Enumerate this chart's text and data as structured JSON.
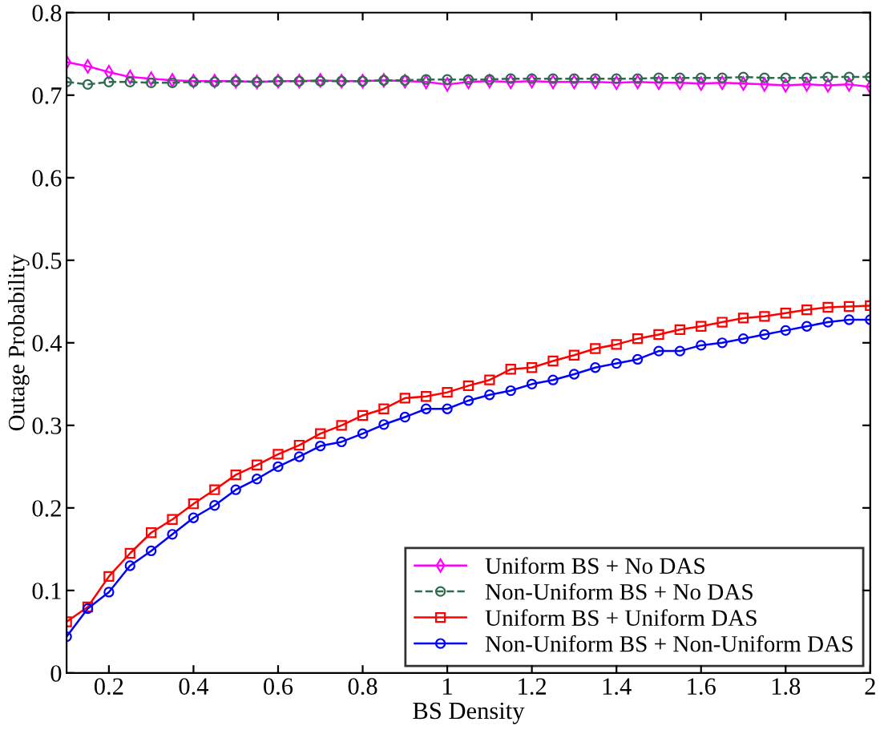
{
  "chart_data": {
    "type": "line",
    "xlabel": "BS Density",
    "ylabel": "Outage Probability",
    "xlim": [
      0.1,
      2
    ],
    "ylim": [
      0,
      0.8
    ],
    "xticks": [
      0.2,
      0.4,
      0.6,
      0.8,
      1,
      1.2,
      1.4,
      1.6,
      1.8,
      2
    ],
    "yticks": [
      0,
      0.1,
      0.2,
      0.3,
      0.4,
      0.5,
      0.6,
      0.7,
      0.8
    ],
    "grid": false,
    "legend": "bottom right",
    "x": [
      0.1,
      0.15,
      0.2,
      0.25,
      0.3,
      0.35,
      0.4,
      0.45,
      0.5,
      0.55,
      0.6,
      0.65,
      0.7,
      0.75,
      0.8,
      0.85,
      0.9,
      0.95,
      1.0,
      1.05,
      1.1,
      1.15,
      1.2,
      1.25,
      1.3,
      1.35,
      1.4,
      1.45,
      1.5,
      1.55,
      1.6,
      1.65,
      1.7,
      1.75,
      1.8,
      1.85,
      1.9,
      1.95,
      2.0
    ],
    "series": [
      {
        "name": "Uniform BS + No DAS",
        "color": "#ff00ff",
        "marker": "diamond",
        "line_style": "solid",
        "values": [
          0.74,
          0.735,
          0.728,
          0.722,
          0.72,
          0.718,
          0.717,
          0.717,
          0.717,
          0.716,
          0.717,
          0.717,
          0.718,
          0.717,
          0.717,
          0.718,
          0.717,
          0.716,
          0.713,
          0.716,
          0.717,
          0.716,
          0.717,
          0.716,
          0.716,
          0.716,
          0.715,
          0.716,
          0.715,
          0.715,
          0.714,
          0.715,
          0.714,
          0.713,
          0.712,
          0.713,
          0.712,
          0.713,
          0.71
        ]
      },
      {
        "name": "Non-Uniform BS + No DAS",
        "color": "#2e6b4f",
        "marker": "circle",
        "line_style": "dashed",
        "values": [
          0.716,
          0.713,
          0.716,
          0.716,
          0.715,
          0.715,
          0.716,
          0.716,
          0.717,
          0.716,
          0.717,
          0.717,
          0.717,
          0.717,
          0.717,
          0.718,
          0.718,
          0.719,
          0.719,
          0.719,
          0.719,
          0.72,
          0.72,
          0.72,
          0.72,
          0.72,
          0.72,
          0.72,
          0.721,
          0.721,
          0.721,
          0.721,
          0.722,
          0.721,
          0.721,
          0.721,
          0.722,
          0.722,
          0.722
        ]
      },
      {
        "name": "Uniform BS + Uniform DAS",
        "color": "#ff0000",
        "marker": "square",
        "line_style": "solid",
        "values": [
          0.062,
          0.08,
          0.117,
          0.145,
          0.17,
          0.186,
          0.205,
          0.222,
          0.24,
          0.252,
          0.265,
          0.276,
          0.29,
          0.3,
          0.312,
          0.32,
          0.333,
          0.335,
          0.34,
          0.348,
          0.355,
          0.368,
          0.37,
          0.378,
          0.385,
          0.393,
          0.398,
          0.405,
          0.41,
          0.416,
          0.42,
          0.425,
          0.43,
          0.432,
          0.436,
          0.44,
          0.443,
          0.444,
          0.445
        ]
      },
      {
        "name": "Non-Uniform BS + Non-Uniform DAS",
        "color": "#0000ff",
        "marker": "circle",
        "line_style": "solid",
        "values": [
          0.044,
          0.078,
          0.098,
          0.13,
          0.148,
          0.168,
          0.188,
          0.203,
          0.222,
          0.235,
          0.25,
          0.262,
          0.275,
          0.28,
          0.29,
          0.301,
          0.31,
          0.32,
          0.32,
          0.33,
          0.337,
          0.342,
          0.35,
          0.355,
          0.362,
          0.37,
          0.375,
          0.38,
          0.39,
          0.39,
          0.397,
          0.4,
          0.405,
          0.41,
          0.415,
          0.42,
          0.425,
          0.428,
          0.428
        ]
      }
    ]
  }
}
